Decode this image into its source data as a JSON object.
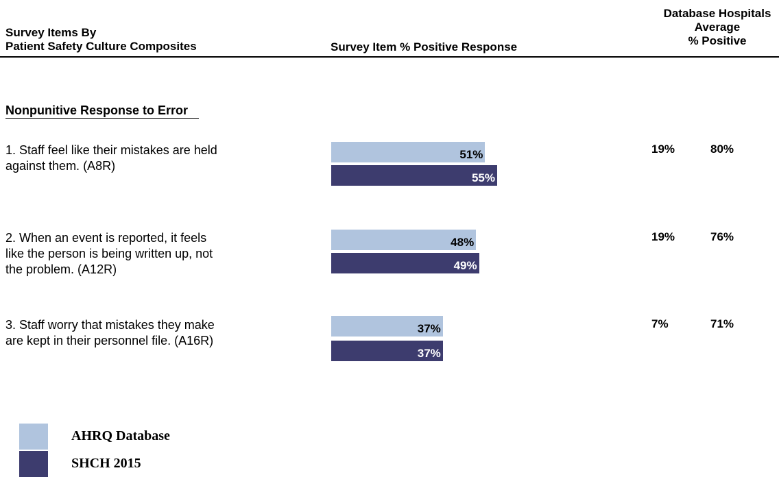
{
  "header": {
    "left_line1": "Survey Items By",
    "left_line2": "Patient Safety Culture Composites",
    "middle": "Survey Item % Positive Response",
    "right_line1": "Database Hospitals",
    "right_line2": "Average",
    "right_line3": "% Positive"
  },
  "chart_data": {
    "type": "bar",
    "section": "Nonpunitive Response to Error",
    "categories": [
      "1. Staff feel like their mistakes are held against them. (A8R)",
      "2. When an event is reported, it feels like the person is being written up, not the problem. (A12R)",
      "3. Staff worry that mistakes they make are kept in their personnel file. (A16R)"
    ],
    "series": [
      {
        "name": "AHRQ Database",
        "values": [
          51,
          48,
          37
        ],
        "labels": [
          "51%",
          "48%",
          "37%"
        ],
        "color": "#b0c4de"
      },
      {
        "name": "SHCH 2015",
        "values": [
          55,
          49,
          37
        ],
        "labels": [
          "55%",
          "49%",
          "37%"
        ],
        "color": "#3d3c6e"
      }
    ],
    "database_range": {
      "low": [
        "19%",
        "19%",
        "7%"
      ],
      "high": [
        "80%",
        "76%",
        "71%"
      ]
    },
    "xlim": [
      0,
      100
    ]
  },
  "items": [
    {
      "line1": "1. Staff feel like their mistakes are held",
      "line2": "against them. (A8R)",
      "line3": ""
    },
    {
      "line1": "2. When an event is reported, it feels",
      "line2": "like the person is being written up, not",
      "line3": "the problem. (A12R)"
    },
    {
      "line1": "3. Staff worry that mistakes they make",
      "line2": "are kept in their personnel file. (A16R)",
      "line3": ""
    }
  ],
  "legend": [
    {
      "label": "AHRQ Database",
      "color": "#b0c4de"
    },
    {
      "label": "SHCH 2015",
      "color": "#3d3c6e"
    }
  ]
}
